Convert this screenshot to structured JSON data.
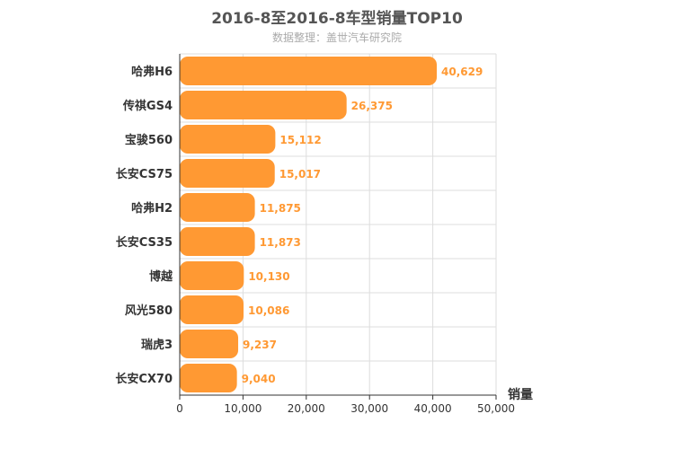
{
  "chart_data": {
    "type": "bar",
    "orientation": "horizontal",
    "title": "2016-8至2016-8车型销量TOP10",
    "subtitle": "数据整理：盖世汽车研究院",
    "xlabel": "销量",
    "categories": [
      "哈弗H6",
      "传祺GS4",
      "宝骏560",
      "长安CS75",
      "哈弗H2",
      "长安CS35",
      "博越",
      "风光580",
      "瑞虎3",
      "长安CX70"
    ],
    "values": [
      40629,
      26375,
      15112,
      15017,
      11875,
      11873,
      10130,
      10086,
      9237,
      9040
    ],
    "value_labels": [
      "40,629",
      "26,375",
      "15,112",
      "15,017",
      "11,875",
      "11,873",
      "10,130",
      "10,086",
      "9,237",
      "9,040"
    ],
    "xlim": [
      0,
      50000
    ],
    "xticks": [
      0,
      10000,
      20000,
      30000,
      40000,
      50000
    ],
    "xtick_labels": [
      "0",
      "10,000",
      "20,000",
      "30,000",
      "40,000",
      "50,000"
    ],
    "grid": true,
    "bar_color": "#ff9933"
  }
}
